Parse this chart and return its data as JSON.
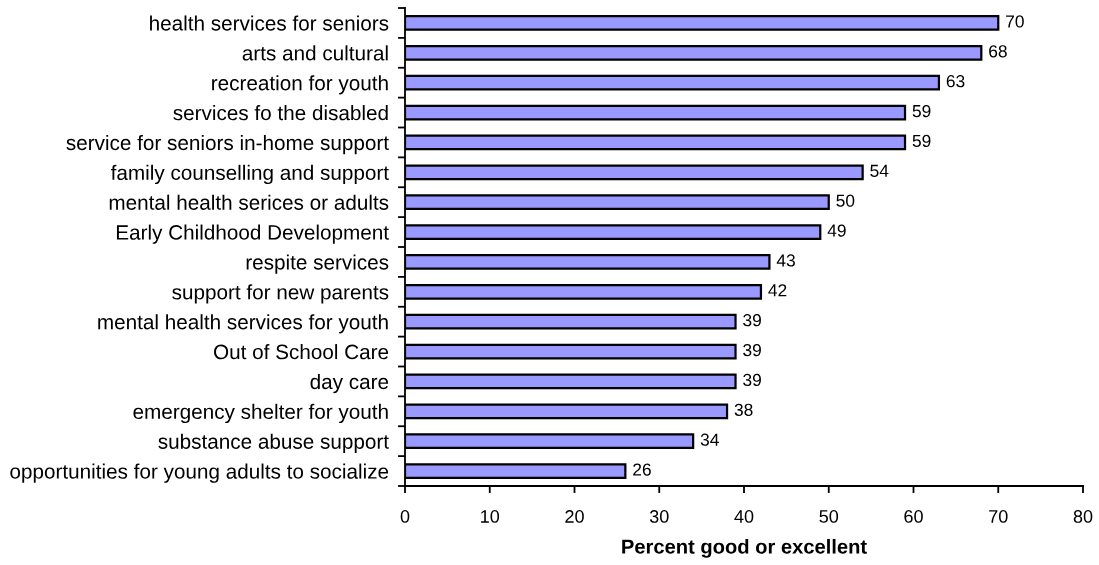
{
  "chart_data": {
    "type": "bar",
    "orientation": "horizontal",
    "categories": [
      "health services for seniors",
      "arts and cultural",
      "recreation for youth",
      "services fo the disabled",
      "service for seniors in-home support",
      "family counselling and support",
      "mental health serices or adults",
      "Early Childhood Development",
      "respite services",
      "support for new parents",
      "mental health services for youth",
      "Out of School Care",
      "day care",
      "emergency shelter for youth",
      "substance abuse support",
      "opportunities for young adults to socialize"
    ],
    "values": [
      70,
      68,
      63,
      59,
      59,
      54,
      50,
      49,
      43,
      42,
      39,
      39,
      39,
      38,
      34,
      26
    ],
    "color": "#9999ff",
    "xlim": [
      0,
      80
    ],
    "xticks": [
      0,
      10,
      20,
      30,
      40,
      50,
      60,
      70,
      80
    ],
    "xlabel": "Percent good or excellent",
    "data_labels": true,
    "grid": false
  }
}
